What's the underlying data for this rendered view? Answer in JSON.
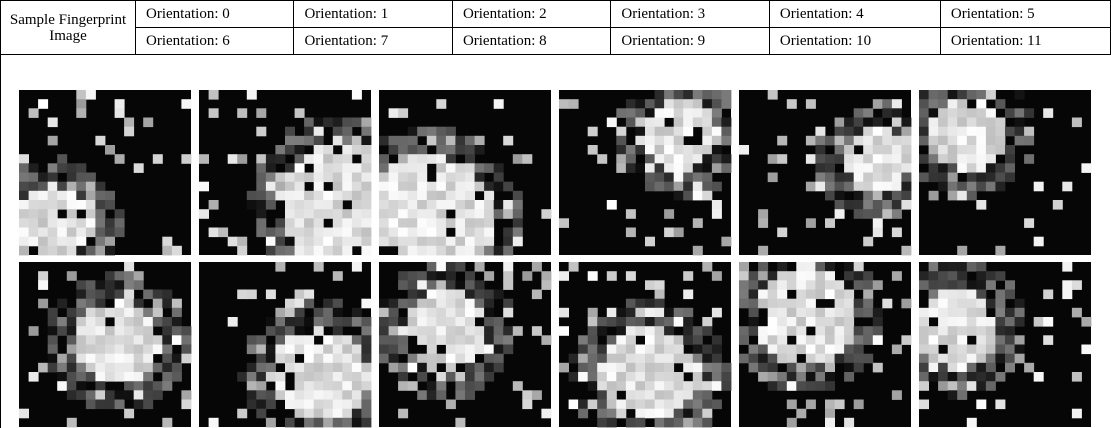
{
  "header": {
    "title": "Sample Fingerprint Image",
    "orientations": [
      [
        "Orientation: 0",
        "Orientation: 1",
        "Orientation: 2",
        "Orientation: 3",
        "Orientation: 4",
        "Orientation: 5"
      ],
      [
        "Orientation: 6",
        "Orientation: 7",
        "Orientation: 8",
        "Orientation: 9",
        "Orientation: 10",
        "Orientation: 11"
      ]
    ]
  }
}
